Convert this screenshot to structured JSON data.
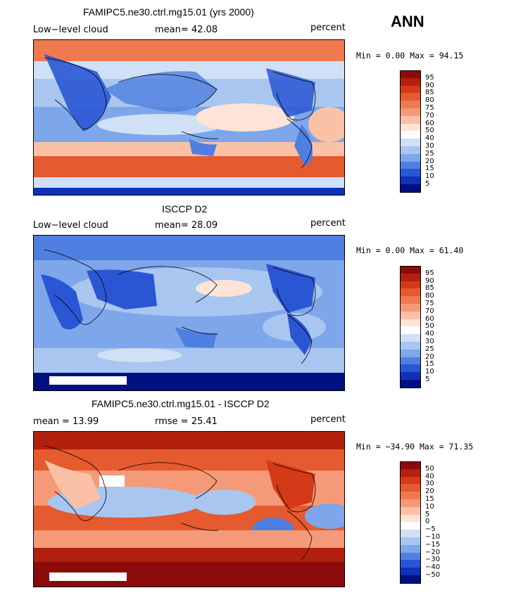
{
  "season": "ANN",
  "panels": [
    {
      "title": "FAMIPC5.ne30.ctrl.mg15.01 (yrs 2000)",
      "left_label": "Low−level cloud",
      "center_label": "mean=  42.08",
      "right_label": "percent",
      "minmax": "Min =   0.00 Max =  94.15",
      "colorbar": {
        "labels": [
          "95",
          "90",
          "85",
          "80",
          "75",
          "70",
          "60",
          "50",
          "40",
          "30",
          "25",
          "20",
          "15",
          "10",
          "5"
        ],
        "colors": [
          "#8b0a0a",
          "#b3200e",
          "#d43a17",
          "#e55a2e",
          "#f07a50",
          "#f59a78",
          "#fac1a6",
          "#fde4d6",
          "#ffffff",
          "#cfe0f7",
          "#a8c6f0",
          "#7ea6ea",
          "#4f7fe0",
          "#2a56d4",
          "#1030b8",
          "#001080"
        ]
      }
    },
    {
      "title": "ISCCP D2",
      "left_label": "Low−level cloud",
      "center_label": "mean=  28.09",
      "right_label": "percent",
      "minmax": "Min =   0.00 Max =  61.40",
      "colorbar": {
        "labels": [
          "95",
          "90",
          "85",
          "80",
          "75",
          "70",
          "60",
          "50",
          "40",
          "30",
          "25",
          "20",
          "15",
          "10",
          "5"
        ],
        "colors": [
          "#8b0a0a",
          "#b3200e",
          "#d43a17",
          "#e55a2e",
          "#f07a50",
          "#f59a78",
          "#fac1a6",
          "#fde4d6",
          "#ffffff",
          "#cfe0f7",
          "#a8c6f0",
          "#7ea6ea",
          "#4f7fe0",
          "#2a56d4",
          "#1030b8",
          "#001080"
        ]
      }
    },
    {
      "title": "FAMIPC5.ne30.ctrl.mg15.01 - ISCCP D2",
      "left_label": "mean =   13.99",
      "center_label": "rmse =   25.41",
      "right_label": "percent",
      "minmax": "Min = −34.90 Max =  71.35",
      "colorbar": {
        "labels": [
          "50",
          "40",
          "30",
          "20",
          "15",
          "10",
          "5",
          "0",
          "−5",
          "−10",
          "−15",
          "−20",
          "−30",
          "−40",
          "−50"
        ],
        "colors": [
          "#8b0a0a",
          "#b3200e",
          "#d43a17",
          "#e55a2e",
          "#f07a50",
          "#f59a78",
          "#fac1a6",
          "#fde4d6",
          "#ffffff",
          "#cfe0f7",
          "#a8c6f0",
          "#7ea6ea",
          "#4f7fe0",
          "#2a56d4",
          "#1030b8",
          "#001080"
        ]
      }
    }
  ]
}
